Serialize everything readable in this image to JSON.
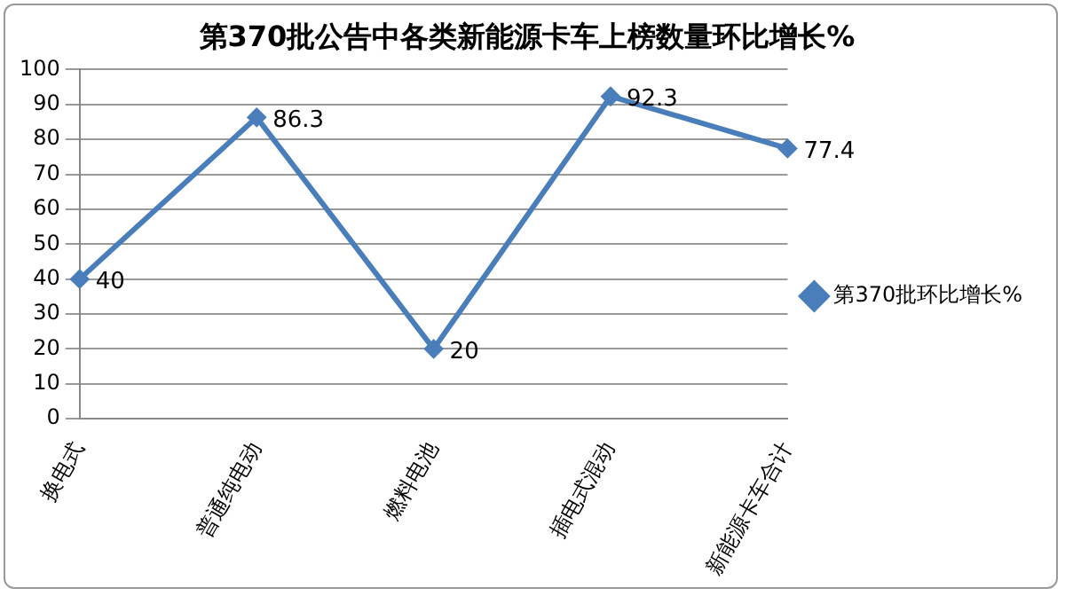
{
  "chart_data": {
    "type": "line",
    "title": "第370批公告中各类新能源卡车上榜数量环比增长%",
    "categories": [
      "换电式",
      "普通纯电动",
      "燃料电池",
      "插电式混动",
      "新能源卡车合计"
    ],
    "series": [
      {
        "name": "第370批环比增长%",
        "color": "#4a7ebb",
        "values": [
          40,
          86.3,
          20,
          92.3,
          77.4
        ]
      }
    ],
    "ylim": [
      0,
      100
    ],
    "yticks": [
      0,
      10,
      20,
      30,
      40,
      50,
      60,
      70,
      80,
      90,
      100
    ],
    "grid": "y",
    "legend": "right",
    "marker": "diamond",
    "line_style": "solid",
    "data_labels": true
  }
}
